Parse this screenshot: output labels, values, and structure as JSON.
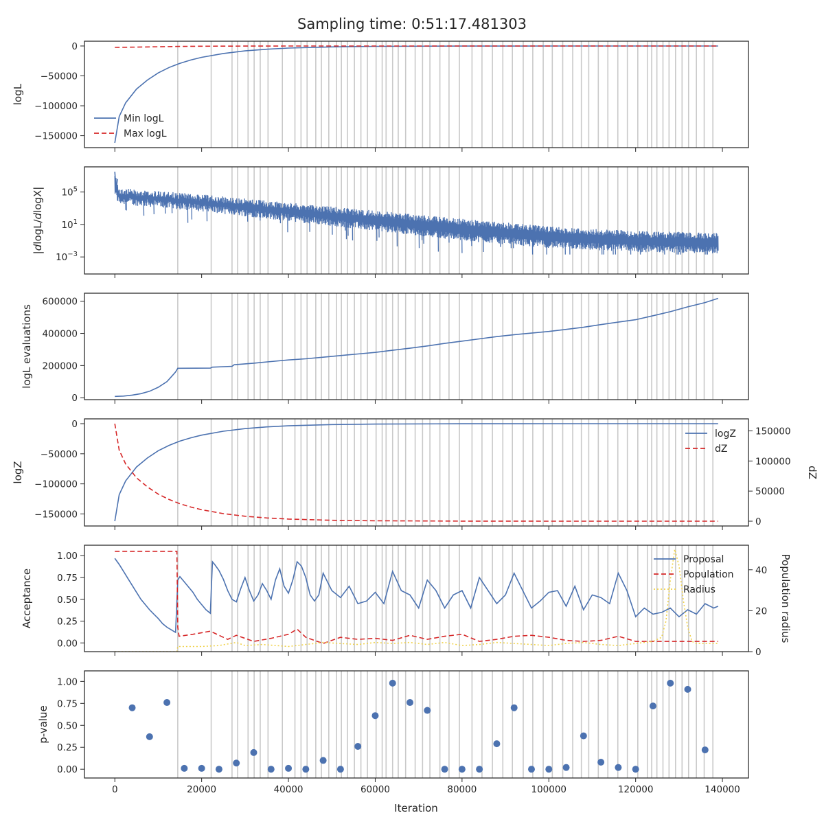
{
  "figure": {
    "title": "Sampling time: 0:51:17.481303",
    "xlabel": "Iteration"
  },
  "colors": {
    "blue": "#4c72b0",
    "red": "#d62728",
    "yellow": "#f0d24a",
    "vline": "#c9c9c9"
  },
  "chart_data": [
    {
      "type": "line",
      "title": "Sampling time: 0:51:17.481303",
      "xlim": [
        -7000,
        146000
      ],
      "ylabel": "logL",
      "ylim": [
        -170000,
        8000
      ],
      "yticks": [
        0,
        -50000,
        -100000,
        -150000
      ],
      "ytick_labels": [
        "0",
        "−50000",
        "−100000",
        "−150000"
      ],
      "legend_position": "lower-left",
      "series": [
        {
          "name": "Min logL",
          "style": "solid",
          "color": "#4c72b0",
          "x": [
            0,
            1000,
            2500,
            5000,
            7500,
            10000,
            12500,
            15000,
            17500,
            20000,
            25000,
            30000,
            35000,
            40000,
            50000,
            60000,
            80000,
            100000,
            120000,
            139000
          ],
          "y": [
            -162000,
            -118000,
            -95000,
            -72000,
            -57000,
            -45000,
            -36000,
            -29000,
            -23500,
            -19000,
            -12500,
            -8200,
            -5400,
            -3500,
            -1500,
            -650,
            -120,
            -30,
            -5,
            0
          ]
        },
        {
          "name": "Max logL",
          "style": "dashed",
          "color": "#d62728",
          "x": [
            0,
            5000,
            10000,
            15000,
            20000,
            30000,
            40000,
            60000,
            139000
          ],
          "y": [
            -2300,
            -1900,
            -1300,
            -700,
            -350,
            -120,
            -50,
            -10,
            0
          ]
        }
      ]
    },
    {
      "type": "line",
      "ylabel": "|dlogL/dlogX|",
      "yscale": "log",
      "ylim_log10": [
        -5.1,
        8.1
      ],
      "yticks_log10": [
        5,
        1,
        -3
      ],
      "ytick_labels": [
        "10^5",
        "10^1",
        "10^-3"
      ],
      "series": [
        {
          "name": "",
          "style": "noisy",
          "color": "#4c72b0",
          "x": [
            0,
            500,
            1000,
            20000,
            40000,
            60000,
            80000,
            100000,
            120000,
            139000
          ],
          "upper_log10": [
            7.5,
            6.3,
            5.5,
            4.7,
            3.7,
            2.7,
            1.7,
            0.8,
            0.2,
            0.0
          ],
          "lower_log10": [
            4.5,
            3.8,
            3.5,
            2.6,
            1.4,
            0.2,
            -1.0,
            -1.9,
            -2.4,
            -2.6
          ],
          "spike_min_log10": -2.7
        }
      ]
    },
    {
      "type": "line",
      "ylabel": "logL evaluations",
      "ylim": [
        -12000,
        650000
      ],
      "yticks": [
        0,
        200000,
        400000,
        600000
      ],
      "ytick_labels": [
        "0",
        "200000",
        "400000",
        "600000"
      ],
      "series": [
        {
          "name": "",
          "style": "solid",
          "color": "#4c72b0",
          "x": [
            0,
            2000,
            4000,
            6000,
            8000,
            10000,
            12000,
            13000,
            14000,
            14500,
            15000,
            22000,
            22500,
            27000,
            27500,
            32000,
            36000,
            40000,
            44000,
            48000,
            52000,
            56000,
            60000,
            64000,
            68000,
            72000,
            76000,
            80000,
            84000,
            88000,
            92000,
            96000,
            100000,
            104000,
            108000,
            112000,
            116000,
            120000,
            124000,
            128000,
            132000,
            136000,
            139000
          ],
          "y": [
            8000,
            10000,
            16000,
            25000,
            40000,
            65000,
            100000,
            130000,
            160000,
            183000,
            183000,
            184000,
            190000,
            195000,
            205000,
            215000,
            225000,
            235000,
            242000,
            252000,
            262000,
            272000,
            282000,
            295000,
            308000,
            322000,
            338000,
            352000,
            366000,
            380000,
            392000,
            402000,
            412000,
            425000,
            438000,
            455000,
            470000,
            485000,
            510000,
            535000,
            565000,
            592000,
            618000
          ]
        }
      ]
    },
    {
      "type": "line",
      "ylabel": "logZ",
      "ylabel_right": "dZ",
      "ylim": [
        -170000,
        8000
      ],
      "yticks": [
        0,
        -50000,
        -100000,
        -150000
      ],
      "ytick_labels": [
        "0",
        "−50000",
        "−100000",
        "−150000"
      ],
      "ylim_right": [
        -8000,
        170000
      ],
      "yticks_right": [
        0,
        50000,
        100000,
        150000
      ],
      "ytick_labels_right": [
        "0",
        "50000",
        "100000",
        "150000"
      ],
      "legend_position": "upper-right",
      "series": [
        {
          "name": "logZ",
          "style": "solid",
          "color": "#4c72b0",
          "axis": "left",
          "x": [
            0,
            1000,
            2500,
            5000,
            7500,
            10000,
            12500,
            15000,
            17500,
            20000,
            25000,
            30000,
            35000,
            40000,
            50000,
            60000,
            80000,
            100000,
            120000,
            139000
          ],
          "y": [
            -162000,
            -118000,
            -95000,
            -72000,
            -57000,
            -45000,
            -36000,
            -29000,
            -23500,
            -19000,
            -12500,
            -8200,
            -5400,
            -3500,
            -1500,
            -650,
            -120,
            -30,
            -5,
            0
          ]
        },
        {
          "name": "dZ",
          "style": "dashed",
          "color": "#d62728",
          "axis": "right",
          "x": [
            0,
            1000,
            2500,
            5000,
            7500,
            10000,
            12500,
            15000,
            17500,
            20000,
            25000,
            30000,
            35000,
            40000,
            50000,
            60000,
            80000,
            100000,
            120000,
            139000
          ],
          "y": [
            162000,
            118000,
            95000,
            72000,
            57000,
            45000,
            36000,
            29000,
            23500,
            19000,
            12500,
            8200,
            5400,
            3500,
            1500,
            650,
            120,
            30,
            5,
            0
          ]
        }
      ]
    },
    {
      "type": "line",
      "ylabel": "Acceptance",
      "ylabel_right": "Population radius",
      "ylim": [
        -0.1,
        1.12
      ],
      "yticks": [
        0.0,
        0.25,
        0.5,
        0.75,
        1.0
      ],
      "ytick_labels": [
        "0.00",
        "0.25",
        "0.50",
        "0.75",
        "1.00"
      ],
      "ylim_right": [
        0,
        52
      ],
      "yticks_right": [
        0,
        20,
        40
      ],
      "ytick_labels_right": [
        "0",
        "20",
        "40"
      ],
      "legend_position": "upper-right",
      "series": [
        {
          "name": "Proposal",
          "style": "solid",
          "color": "#4c72b0",
          "axis": "left",
          "x": [
            0,
            1000,
            2000,
            3000,
            4000,
            5000,
            6000,
            7000,
            8000,
            9000,
            10000,
            11000,
            12000,
            13000,
            14000,
            14500,
            15000,
            16000,
            17000,
            18000,
            19000,
            20000,
            21000,
            22000,
            22500,
            23000,
            24000,
            25000,
            26000,
            27000,
            28000,
            29000,
            30000,
            31000,
            32000,
            33000,
            34000,
            35000,
            36000,
            37000,
            38000,
            39000,
            40000,
            41000,
            42000,
            43000,
            44000,
            45000,
            46000,
            47000,
            48000,
            49000,
            50000,
            52000,
            54000,
            56000,
            58000,
            60000,
            62000,
            64000,
            66000,
            68000,
            70000,
            72000,
            74000,
            76000,
            78000,
            80000,
            82000,
            84000,
            86000,
            88000,
            90000,
            92000,
            94000,
            96000,
            98000,
            100000,
            102000,
            104000,
            106000,
            108000,
            110000,
            112000,
            114000,
            116000,
            118000,
            120000,
            122000,
            124000,
            126000,
            128000,
            130000,
            132000,
            134000,
            136000,
            138000,
            139000
          ],
          "y": [
            0.97,
            0.9,
            0.82,
            0.74,
            0.66,
            0.58,
            0.5,
            0.44,
            0.38,
            0.33,
            0.28,
            0.22,
            0.18,
            0.15,
            0.12,
            0.72,
            0.76,
            0.7,
            0.64,
            0.58,
            0.5,
            0.44,
            0.38,
            0.34,
            0.93,
            0.9,
            0.83,
            0.73,
            0.6,
            0.5,
            0.47,
            0.62,
            0.75,
            0.6,
            0.48,
            0.55,
            0.68,
            0.6,
            0.5,
            0.72,
            0.85,
            0.65,
            0.57,
            0.72,
            0.93,
            0.88,
            0.75,
            0.55,
            0.48,
            0.55,
            0.8,
            0.7,
            0.6,
            0.52,
            0.65,
            0.45,
            0.48,
            0.58,
            0.45,
            0.82,
            0.6,
            0.55,
            0.4,
            0.72,
            0.6,
            0.4,
            0.55,
            0.6,
            0.4,
            0.75,
            0.6,
            0.45,
            0.55,
            0.8,
            0.6,
            0.4,
            0.48,
            0.58,
            0.6,
            0.42,
            0.65,
            0.38,
            0.55,
            0.52,
            0.45,
            0.8,
            0.6,
            0.3,
            0.4,
            0.33,
            0.35,
            0.4,
            0.3,
            0.38,
            0.33,
            0.45,
            0.4,
            0.42
          ]
        },
        {
          "name": "Population",
          "style": "dashed",
          "color": "#d62728",
          "axis": "right",
          "x": [
            0,
            14300,
            14500,
            14800,
            18000,
            22000,
            26000,
            28000,
            32000,
            36000,
            40000,
            42000,
            44000,
            48000,
            52000,
            56000,
            60000,
            64000,
            68000,
            72000,
            76000,
            80000,
            84000,
            88000,
            92000,
            96000,
            100000,
            104000,
            108000,
            112000,
            116000,
            120000,
            124000,
            128000,
            132000,
            136000,
            139000
          ],
          "y": [
            49,
            49,
            12,
            7.5,
            8.5,
            10,
            6,
            8,
            5,
            6.5,
            8.5,
            11,
            7,
            4,
            7,
            6,
            6.5,
            5.5,
            8,
            6,
            7.5,
            8.5,
            5,
            6,
            7.5,
            8,
            7,
            5.5,
            5,
            5.5,
            7.5,
            5,
            5,
            5,
            5,
            5,
            5
          ]
        },
        {
          "name": "Radius",
          "style": "dotted",
          "color": "#f0d24a",
          "axis": "right",
          "x": [
            0,
            14300,
            14500,
            16000,
            20000,
            24000,
            28000,
            30000,
            34000,
            40000,
            44000,
            48000,
            52000,
            56000,
            60000,
            64000,
            68000,
            72000,
            76000,
            80000,
            84000,
            88000,
            92000,
            96000,
            100000,
            104000,
            108000,
            112000,
            116000,
            120000,
            124000,
            126000,
            127000,
            128000,
            129000,
            130000,
            131000,
            132000,
            133000,
            134000,
            136000,
            139000
          ],
          "y": [
            0,
            0,
            2.5,
            2.5,
            2.5,
            3,
            4.5,
            3,
            3.5,
            2.5,
            3.5,
            4.5,
            4,
            3.5,
            4.5,
            4,
            4.5,
            3.5,
            4.5,
            3,
            3.5,
            4.5,
            4,
            3.5,
            3,
            4,
            4.5,
            3.5,
            3,
            4,
            5,
            7,
            15,
            35,
            50,
            42,
            25,
            12,
            5,
            4,
            4,
            4
          ]
        }
      ]
    },
    {
      "type": "scatter",
      "ylabel": "p-value",
      "ylim": [
        -0.1,
        1.12
      ],
      "yticks": [
        0.0,
        0.25,
        0.5,
        0.75,
        1.0
      ],
      "ytick_labels": [
        "0.00",
        "0.25",
        "0.50",
        "0.75",
        "1.00"
      ],
      "xticks": [
        0,
        20000,
        40000,
        60000,
        80000,
        100000,
        120000,
        140000
      ],
      "xtick_labels": [
        "0",
        "20000",
        "40000",
        "60000",
        "80000",
        "100000",
        "120000",
        "140000"
      ],
      "series": [
        {
          "name": "",
          "color": "#4c72b0",
          "x": [
            4000,
            8000,
            12000,
            16000,
            20000,
            24000,
            28000,
            32000,
            36000,
            40000,
            44000,
            48000,
            52000,
            56000,
            60000,
            64000,
            68000,
            72000,
            76000,
            80000,
            84000,
            88000,
            92000,
            96000,
            100000,
            104000,
            108000,
            112000,
            116000,
            120000,
            124000,
            128000,
            132000,
            136000
          ],
          "y": [
            0.7,
            0.37,
            0.76,
            0.01,
            0.01,
            0.0,
            0.07,
            0.19,
            0.0,
            0.01,
            0.0,
            0.1,
            0.0,
            0.26,
            0.61,
            0.98,
            0.76,
            0.67,
            0.0,
            0.0,
            0.0,
            0.29,
            0.7,
            0.0,
            0.0,
            0.02,
            0.38,
            0.08,
            0.02,
            0.0,
            0.72,
            0.98,
            0.91,
            0.22
          ]
        }
      ]
    }
  ],
  "vertical_lines": [
    14500,
    22200,
    27000,
    28300,
    30700,
    32100,
    33500,
    35300,
    38600,
    41500,
    42900,
    44300,
    46300,
    47600,
    49300,
    51100,
    52200,
    53600,
    55200,
    56700,
    58200,
    60200,
    61600,
    62500,
    64000,
    65300,
    67000,
    69200,
    70900,
    72600,
    74900,
    77000,
    79400,
    82300,
    84600,
    87000,
    89400,
    91600,
    94100,
    96300,
    98700,
    100800,
    103200,
    105500,
    107500,
    109200,
    111400,
    113600,
    115900,
    118100,
    120500,
    122700,
    123700,
    124900,
    126300,
    127700,
    129200,
    130700,
    132200,
    134000,
    135800,
    137800
  ]
}
